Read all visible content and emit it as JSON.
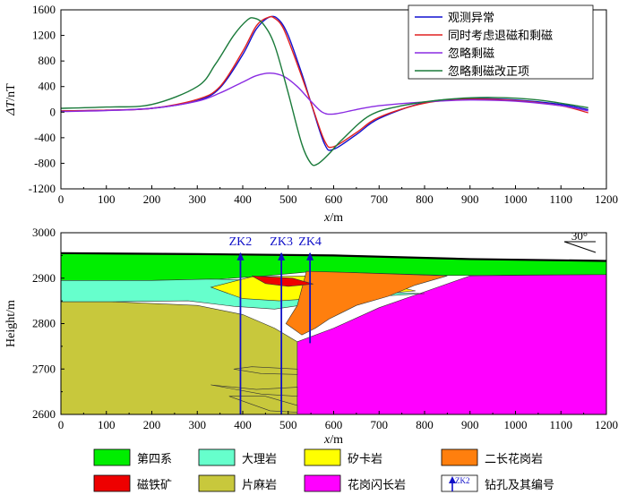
{
  "chart_data": [
    {
      "type": "line",
      "xlabel_symbol": "x",
      "xlabel_unit": "/m",
      "ylabel_symbol": "ΔT",
      "ylabel_unit": "/nT",
      "xlim": [
        0,
        1200
      ],
      "ylim": [
        -1200,
        1600
      ],
      "xticks": [
        0,
        100,
        200,
        300,
        400,
        500,
        600,
        700,
        800,
        900,
        1000,
        1100,
        1200
      ],
      "yticks": [
        -1200,
        -800,
        -400,
        0,
        400,
        800,
        1200,
        1600
      ],
      "legend_position": "top-right",
      "series": [
        {
          "name": "观测异常",
          "color": "#1010d0",
          "x": [
            0,
            100,
            200,
            300,
            350,
            400,
            430,
            460,
            480,
            500,
            530,
            550,
            580,
            600,
            650,
            700,
            800,
            900,
            1000,
            1100,
            1160
          ],
          "y": [
            20,
            30,
            60,
            180,
            380,
            900,
            1300,
            1490,
            1440,
            1200,
            600,
            150,
            -500,
            -580,
            -350,
            -100,
            150,
            210,
            190,
            120,
            40
          ]
        },
        {
          "name": "同时考虑退磁和剩磁",
          "color": "#e02020",
          "x": [
            0,
            100,
            200,
            300,
            350,
            400,
            430,
            455,
            470,
            490,
            520,
            550,
            580,
            600,
            650,
            700,
            800,
            900,
            1000,
            1100,
            1160
          ],
          "y": [
            20,
            30,
            60,
            200,
            400,
            950,
            1350,
            1480,
            1470,
            1300,
            750,
            150,
            -450,
            -540,
            -320,
            -80,
            140,
            200,
            180,
            100,
            -10
          ]
        },
        {
          "name": "忽略剩磁",
          "color": "#8a2be2",
          "x": [
            0,
            100,
            200,
            300,
            350,
            400,
            430,
            460,
            490,
            520,
            550,
            575,
            600,
            650,
            700,
            800,
            900,
            1000,
            1100,
            1160
          ],
          "y": [
            10,
            25,
            60,
            170,
            300,
            470,
            570,
            610,
            560,
            400,
            170,
            0,
            -30,
            40,
            100,
            160,
            190,
            170,
            100,
            20
          ]
        },
        {
          "name": "忽略剩磁改正项",
          "color": "#1a7a3a",
          "x": [
            0,
            100,
            200,
            300,
            340,
            380,
            410,
            425,
            445,
            470,
            500,
            530,
            550,
            565,
            590,
            620,
            680,
            750,
            850,
            950,
            1050,
            1160
          ],
          "y": [
            60,
            80,
            120,
            400,
            750,
            1200,
            1440,
            1470,
            1380,
            1050,
            300,
            -500,
            -800,
            -810,
            -650,
            -420,
            -50,
            100,
            200,
            230,
            190,
            70
          ]
        }
      ]
    },
    {
      "type": "area",
      "xlabel_symbol": "x",
      "xlabel_unit": "/m",
      "ylabel": "Height/m",
      "xlim": [
        0,
        1200
      ],
      "ylim": [
        2600,
        3000
      ],
      "xticks": [
        0,
        100,
        200,
        300,
        400,
        500,
        600,
        700,
        800,
        900,
        1000,
        1100,
        1200
      ],
      "yticks": [
        2600,
        2700,
        2800,
        2900,
        3000
      ],
      "annotation": "30°",
      "boreholes": [
        {
          "name": "ZK2",
          "x": 395,
          "top": 2955,
          "bottom": 2600
        },
        {
          "name": "ZK3",
          "x": 485,
          "top": 2955,
          "bottom": 2600
        },
        {
          "name": "ZK4",
          "x": 548,
          "top": 2955,
          "bottom": 2757
        }
      ],
      "layers": [
        {
          "name": "片麻岩",
          "color": "#c8c83c",
          "polygon": [
            [
              0,
              2848
            ],
            [
              110,
              2848
            ],
            [
              300,
              2840
            ],
            [
              400,
              2820
            ],
            [
              470,
              2790
            ],
            [
              520,
              2760
            ],
            [
              520,
              2600
            ],
            [
              0,
              2600
            ]
          ]
        },
        {
          "name": "花岗闪长岩",
          "color": "#ff00ff",
          "polygon": [
            [
              520,
              2760
            ],
            [
              600,
              2790
            ],
            [
              700,
              2835
            ],
            [
              800,
              2870
            ],
            [
              900,
              2905
            ],
            [
              1200,
              2908
            ],
            [
              1200,
              2600
            ],
            [
              520,
              2600
            ]
          ]
        },
        {
          "name": "第四系",
          "color": "#00ee00",
          "polygon": [
            [
              0,
              2955
            ],
            [
              300,
              2953
            ],
            [
              600,
              2950
            ],
            [
              900,
              2942
            ],
            [
              1200,
              2938
            ],
            [
              1200,
              2908
            ],
            [
              850,
              2906
            ],
            [
              650,
              2912
            ],
            [
              550,
              2914
            ],
            [
              450,
              2905
            ],
            [
              350,
              2898
            ],
            [
              200,
              2895
            ],
            [
              0,
              2895
            ]
          ]
        },
        {
          "name": "大理岩",
          "color": "#66ffcc",
          "polygon": [
            [
              0,
              2895
            ],
            [
              200,
              2895
            ],
            [
              330,
              2898
            ],
            [
              460,
              2895
            ],
            [
              580,
              2880
            ],
            [
              740,
              2868
            ],
            [
              800,
              2866
            ],
            [
              700,
              2860
            ],
            [
              560,
              2845
            ],
            [
              470,
              2832
            ],
            [
              380,
              2838
            ],
            [
              280,
              2850
            ],
            [
              110,
              2848
            ],
            [
              0,
              2848
            ]
          ]
        },
        {
          "name": "矽卡岩",
          "color": "#ffff00",
          "polygon": [
            [
              330,
              2880
            ],
            [
              420,
              2903
            ],
            [
              560,
              2905
            ],
            [
              700,
              2890
            ],
            [
              780,
              2872
            ],
            [
              600,
              2858
            ],
            [
              480,
              2850
            ],
            [
              400,
              2855
            ]
          ]
        },
        {
          "name": "二长花岗岩",
          "color": "#ff7f0e",
          "polygon": [
            [
              540,
              2915
            ],
            [
              620,
              2913
            ],
            [
              850,
              2905
            ],
            [
              780,
              2885
            ],
            [
              720,
              2860
            ],
            [
              650,
              2840
            ],
            [
              590,
              2810
            ],
            [
              560,
              2790
            ],
            [
              530,
              2775
            ],
            [
              495,
              2800
            ],
            [
              520,
              2840
            ]
          ]
        },
        {
          "name": "磁铁矿",
          "color": "#ee0000",
          "polygon": [
            [
              420,
              2905
            ],
            [
              510,
              2900
            ],
            [
              555,
              2887
            ],
            [
              500,
              2882
            ],
            [
              450,
              2888
            ]
          ]
        }
      ],
      "legend_items": [
        {
          "name": "第四系",
          "color": "#00ee00"
        },
        {
          "name": "大理岩",
          "color": "#66ffcc"
        },
        {
          "name": "矽卡岩",
          "color": "#ffff00"
        },
        {
          "name": "二长花岗岩",
          "color": "#ff7f0e"
        },
        {
          "name": "磁铁矿",
          "color": "#ee0000"
        },
        {
          "name": "片麻岩",
          "color": "#c8c83c"
        },
        {
          "name": "花岗闪长岩",
          "color": "#ff00ff"
        },
        {
          "name": "钻孔及其编号",
          "symbol_label": "ZK2",
          "color": "#1010c8"
        }
      ]
    }
  ]
}
